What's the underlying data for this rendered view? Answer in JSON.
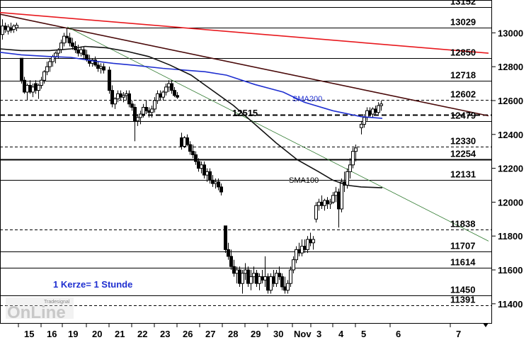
{
  "chart_data": {
    "type": "candlestick",
    "yticks": [
      11400,
      11600,
      11800,
      12000,
      12200,
      12400,
      12600,
      12800,
      13000
    ],
    "ylim": [
      11300,
      13170
    ],
    "x_dates": [
      "15",
      "16",
      "19",
      "20",
      "21",
      "22",
      "23",
      "26",
      "27",
      "28",
      "29",
      "30",
      "Nov",
      "3",
      "4",
      "5",
      "6",
      "7"
    ],
    "levels": [
      {
        "label": "13152",
        "value": 13152,
        "style": "solid"
      },
      {
        "label": "13029",
        "value": 13029,
        "style": "solid"
      },
      {
        "label": "12850",
        "value": 12850,
        "style": "solid"
      },
      {
        "label": "12718",
        "value": 12718,
        "style": "solid"
      },
      {
        "label": "12602",
        "value": 12602,
        "style": "dashed"
      },
      {
        "label": "12479",
        "value": 12479,
        "style": "solid"
      },
      {
        "label": "12330",
        "value": 12330,
        "style": "dashed"
      },
      {
        "label": "12254",
        "value": 12254,
        "style": "solid-bold"
      },
      {
        "label": "12131",
        "value": 12131,
        "style": "solid"
      },
      {
        "label": "11838",
        "value": 11838,
        "style": "dashed"
      },
      {
        "label": "11707",
        "value": 11707,
        "style": "solid"
      },
      {
        "label": "11614",
        "value": 11614,
        "style": "solid"
      },
      {
        "label": "11450",
        "value": 11450,
        "style": "solid"
      },
      {
        "label": "11391",
        "value": 11391,
        "style": "dashed"
      }
    ],
    "key_level": {
      "label": "12515",
      "value": 12515,
      "style": "dashed-bold"
    },
    "ma_labels": {
      "sma200": "SMA200",
      "sma100": "SMA100"
    },
    "note": "1 Kerze= 1 Stunde",
    "sma200": [
      [
        0,
        12885
      ],
      [
        30,
        12870
      ],
      [
        70,
        12860
      ],
      [
        100,
        12855
      ],
      [
        130,
        12835
      ],
      [
        160,
        12820
      ],
      [
        190,
        12808
      ],
      [
        230,
        12790
      ],
      [
        260,
        12780
      ],
      [
        290,
        12770
      ],
      [
        320,
        12750
      ],
      [
        360,
        12695
      ],
      [
        400,
        12650
      ],
      [
        430,
        12590
      ],
      [
        470,
        12540
      ],
      [
        510,
        12505
      ],
      [
        540,
        12495
      ]
    ],
    "sma100": [
      [
        0,
        12905
      ],
      [
        30,
        12895
      ],
      [
        70,
        12895
      ],
      [
        100,
        12905
      ],
      [
        120,
        12920
      ],
      [
        150,
        12912
      ],
      [
        180,
        12890
      ],
      [
        210,
        12860
      ],
      [
        240,
        12810
      ],
      [
        270,
        12750
      ],
      [
        300,
        12660
      ],
      [
        330,
        12570
      ],
      [
        360,
        12460
      ],
      [
        390,
        12350
      ],
      [
        420,
        12250
      ],
      [
        450,
        12180
      ],
      [
        470,
        12130
      ],
      [
        490,
        12100
      ],
      [
        510,
        12090
      ],
      [
        540,
        12085
      ]
    ],
    "trendlines": [
      {
        "color": "#e8191e",
        "points": [
          [
            0,
            13120
          ],
          [
            690,
            12880
          ]
        ]
      },
      {
        "color": "#4a0a0a",
        "points": [
          [
            0,
            13110
          ],
          [
            690,
            12510
          ]
        ]
      },
      {
        "color": "#2f7a2f",
        "points": [
          [
            95,
            13035
          ],
          [
            690,
            11770
          ]
        ]
      }
    ],
    "candles": [
      [
        3,
        12990,
        13080,
        12960,
        13040
      ],
      [
        7,
        13040,
        13060,
        13000,
        13020
      ],
      [
        11,
        13010,
        13050,
        12990,
        13035
      ],
      [
        15,
        13030,
        13060,
        13000,
        13015
      ],
      [
        19,
        13020,
        13050,
        13000,
        13040
      ],
      [
        23,
        13030,
        13060,
        13010,
        13045
      ],
      [
        30,
        12850,
        12850,
        12700,
        12720
      ],
      [
        34,
        12720,
        12740,
        12640,
        12650
      ],
      [
        38,
        12650,
        12700,
        12600,
        12690
      ],
      [
        42,
        12690,
        12720,
        12640,
        12650
      ],
      [
        46,
        12650,
        12700,
        12620,
        12680
      ],
      [
        50,
        12700,
        12720,
        12640,
        12660
      ],
      [
        54,
        12660,
        12700,
        12610,
        12690
      ],
      [
        58,
        12690,
        12740,
        12670,
        12720
      ],
      [
        62,
        12720,
        12780,
        12700,
        12770
      ],
      [
        66,
        12770,
        12830,
        12750,
        12800
      ],
      [
        70,
        12800,
        12850,
        12770,
        12830
      ],
      [
        74,
        12830,
        12870,
        12800,
        12860
      ],
      [
        78,
        12860,
        12890,
        12820,
        12880
      ],
      [
        82,
        12880,
        12910,
        12850,
        12900
      ],
      [
        86,
        12900,
        12960,
        12880,
        12940
      ],
      [
        90,
        12940,
        13000,
        12920,
        12980
      ],
      [
        94,
        12980,
        13030,
        12940,
        12970
      ],
      [
        98,
        12970,
        13000,
        12920,
        12940
      ],
      [
        102,
        12940,
        12970,
        12900,
        12920
      ],
      [
        106,
        12920,
        12950,
        12880,
        12900
      ],
      [
        110,
        12900,
        12930,
        12860,
        12880
      ],
      [
        114,
        12880,
        12920,
        12860,
        12900
      ],
      [
        118,
        12900,
        12920,
        12850,
        12870
      ],
      [
        122,
        12870,
        12900,
        12830,
        12840
      ],
      [
        126,
        12840,
        12870,
        12800,
        12820
      ],
      [
        130,
        12820,
        12850,
        12800,
        12840
      ],
      [
        134,
        12840,
        12860,
        12800,
        12810
      ],
      [
        138,
        12810,
        12830,
        12770,
        12790
      ],
      [
        142,
        12790,
        12820,
        12760,
        12800
      ],
      [
        146,
        12800,
        12820,
        12760,
        12780
      ],
      [
        154,
        12780,
        12800,
        12640,
        12660
      ],
      [
        158,
        12660,
        12690,
        12560,
        12580
      ],
      [
        162,
        12580,
        12620,
        12550,
        12610
      ],
      [
        166,
        12610,
        12660,
        12590,
        12640
      ],
      [
        170,
        12640,
        12660,
        12600,
        12620
      ],
      [
        174,
        12620,
        12650,
        12590,
        12630
      ],
      [
        178,
        12630,
        12660,
        12600,
        12640
      ],
      [
        182,
        12640,
        12660,
        12560,
        12580
      ],
      [
        186,
        12580,
        12600,
        12540,
        12560
      ],
      [
        190,
        12560,
        12580,
        12360,
        12480
      ],
      [
        194,
        12480,
        12520,
        12450,
        12500
      ],
      [
        198,
        12500,
        12540,
        12460,
        12520
      ],
      [
        202,
        12520,
        12580,
        12500,
        12560
      ],
      [
        206,
        12560,
        12600,
        12520,
        12540
      ],
      [
        210,
        12540,
        12560,
        12500,
        12530
      ],
      [
        214,
        12530,
        12570,
        12500,
        12550
      ],
      [
        218,
        12550,
        12620,
        12530,
        12600
      ],
      [
        222,
        12600,
        12660,
        12580,
        12640
      ],
      [
        226,
        12640,
        12660,
        12600,
        12620
      ],
      [
        230,
        12620,
        12660,
        12600,
        12650
      ],
      [
        234,
        12650,
        12700,
        12630,
        12680
      ],
      [
        238,
        12680,
        12720,
        12650,
        12700
      ],
      [
        242,
        12700,
        12720,
        12640,
        12660
      ],
      [
        246,
        12660,
        12680,
        12620,
        12630
      ],
      [
        250,
        12630,
        12650,
        12610,
        12620
      ],
      [
        256,
        12380,
        12410,
        12310,
        12330
      ],
      [
        260,
        12330,
        12390,
        12320,
        12380
      ],
      [
        264,
        12380,
        12400,
        12330,
        12340
      ],
      [
        268,
        12340,
        12360,
        12280,
        12300
      ],
      [
        272,
        12300,
        12340,
        12260,
        12280
      ],
      [
        276,
        12280,
        12300,
        12220,
        12240
      ],
      [
        280,
        12240,
        12260,
        12180,
        12200
      ],
      [
        284,
        12200,
        12240,
        12170,
        12220
      ],
      [
        288,
        12220,
        12240,
        12140,
        12160
      ],
      [
        292,
        12160,
        12200,
        12120,
        12180
      ],
      [
        296,
        12180,
        12200,
        12110,
        12130
      ],
      [
        300,
        12130,
        12160,
        12090,
        12110
      ],
      [
        304,
        12110,
        12140,
        12080,
        12120
      ],
      [
        308,
        12120,
        12140,
        12070,
        12090
      ],
      [
        312,
        12090,
        12110,
        12040,
        12060
      ],
      [
        318,
        11860,
        11860,
        11700,
        11720
      ],
      [
        322,
        11720,
        11760,
        11660,
        11680
      ],
      [
        326,
        11680,
        11720,
        11600,
        11620
      ],
      [
        330,
        11620,
        11660,
        11560,
        11580
      ],
      [
        334,
        11580,
        11620,
        11520,
        11600
      ],
      [
        338,
        11600,
        11620,
        11500,
        11520
      ],
      [
        342,
        11520,
        11600,
        11460,
        11580
      ],
      [
        346,
        11580,
        11640,
        11540,
        11600
      ],
      [
        350,
        11600,
        11620,
        11500,
        11520
      ],
      [
        354,
        11520,
        11600,
        11480,
        11560
      ],
      [
        358,
        11560,
        11620,
        11520,
        11580
      ],
      [
        362,
        11580,
        11600,
        11500,
        11520
      ],
      [
        366,
        11520,
        11580,
        11480,
        11560
      ],
      [
        370,
        11560,
        11600,
        11520,
        11540
      ],
      [
        374,
        11540,
        11680,
        11500,
        11560
      ],
      [
        378,
        11560,
        11580,
        11460,
        11480
      ],
      [
        382,
        11480,
        11580,
        11460,
        11560
      ],
      [
        386,
        11560,
        11600,
        11500,
        11520
      ],
      [
        390,
        11520,
        11600,
        11500,
        11580
      ],
      [
        394,
        11580,
        11620,
        11540,
        11560
      ],
      [
        398,
        11560,
        11580,
        11480,
        11500
      ],
      [
        402,
        11500,
        11560,
        11460,
        11480
      ],
      [
        406,
        11480,
        11540,
        11460,
        11520
      ],
      [
        410,
        11520,
        11620,
        11500,
        11600
      ],
      [
        414,
        11600,
        11680,
        11580,
        11660
      ],
      [
        418,
        11660,
        11740,
        11640,
        11720
      ],
      [
        422,
        11720,
        11760,
        11680,
        11700
      ],
      [
        426,
        11700,
        11780,
        11680,
        11740
      ],
      [
        430,
        11740,
        11780,
        11700,
        11720
      ],
      [
        434,
        11720,
        11800,
        11700,
        11780
      ],
      [
        438,
        11780,
        11820,
        11740,
        11760
      ],
      [
        442,
        11760,
        11800,
        11720,
        11780
      ],
      [
        446,
        11900,
        12000,
        11880,
        11980
      ],
      [
        450,
        11980,
        12020,
        11950,
        12000
      ],
      [
        454,
        12000,
        12040,
        11960,
        11980
      ],
      [
        458,
        11980,
        12020,
        11950,
        12010
      ],
      [
        462,
        12010,
        12030,
        11960,
        11990
      ],
      [
        466,
        11990,
        12020,
        11960,
        12000
      ],
      [
        470,
        12000,
        12060,
        11990,
        12040
      ],
      [
        474,
        12040,
        12090,
        12000,
        12060
      ],
      [
        478,
        12060,
        12080,
        11850,
        11960
      ],
      [
        482,
        11960,
        12140,
        11940,
        12120
      ],
      [
        486,
        12120,
        12180,
        12060,
        12100
      ],
      [
        490,
        12100,
        12200,
        12080,
        12180
      ],
      [
        494,
        12180,
        12260,
        12140,
        12220
      ],
      [
        498,
        12220,
        12320,
        12200,
        12300
      ],
      [
        502,
        12300,
        12340,
        12240,
        12320
      ],
      [
        510,
        12440,
        12480,
        12400,
        12460
      ],
      [
        514,
        12460,
        12520,
        12440,
        12500
      ],
      [
        518,
        12500,
        12560,
        12480,
        12540
      ],
      [
        522,
        12540,
        12560,
        12500,
        12520
      ],
      [
        526,
        12520,
        12560,
        12500,
        12550
      ],
      [
        530,
        12550,
        12570,
        12510,
        12530
      ],
      [
        534,
        12530,
        12590,
        12520,
        12570
      ],
      [
        538,
        12570,
        12600,
        12540,
        12580
      ]
    ]
  }
}
